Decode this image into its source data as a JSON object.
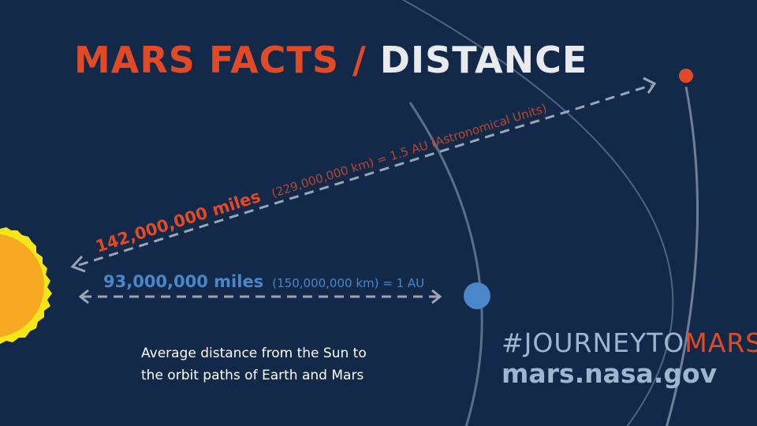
{
  "title": {
    "part1": "MARS FACTS",
    "separator": " / ",
    "part2": "DISTANCE"
  },
  "mars": {
    "distance_miles": "142,000,000 miles",
    "distance_detail": "(229,000,000 km) = 1.5 AU (Astronomical Units)"
  },
  "earth": {
    "distance_miles": "93,000,000 miles",
    "distance_detail": "(150,000,000 km) = 1 AU"
  },
  "caption": {
    "line1": "Average distance from the Sun to",
    "line2": "the orbit paths of Earth and Mars"
  },
  "brand": {
    "hashtag_prefix": "#JOURNEYTO",
    "hashtag_suffix": "MARS",
    "url": "mars.nasa.gov"
  },
  "colors": {
    "background": "#13294a",
    "accent_orange": "#e24a26",
    "earth_blue": "#4a86c8",
    "sun_yellow": "#f5e61a",
    "sun_orange": "#f7a823",
    "orbit_line": "#5b6f8b",
    "light_text": "#9fb6cf"
  }
}
